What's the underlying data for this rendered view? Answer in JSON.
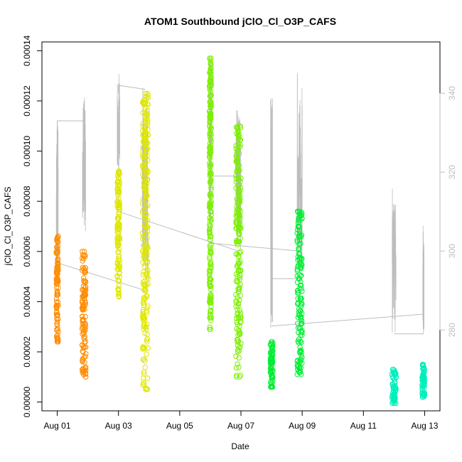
{
  "chart_data": {
    "type": "scatter",
    "title": "ATOM1 Southbound jClO_Cl_O3P_CAFS",
    "xlabel": "Date",
    "ylabel": "jClO_Cl_O3P_CAFS",
    "x_ticks": [
      "Aug 01",
      "Aug 03",
      "Aug 05",
      "Aug 07",
      "Aug 09",
      "Aug 11",
      "Aug 13"
    ],
    "y_ticks": [
      "0.00000",
      "0.00002",
      "0.00004",
      "0.00006",
      "0.00008",
      "0.00010",
      "0.00012",
      "0.00014"
    ],
    "y2_ticks": [
      "280",
      "300",
      "320",
      "340"
    ],
    "xlim": [
      "2016-07-31T12:00",
      "2016-08-13T12:00"
    ],
    "ylim": [
      -3.5e-06,
      0.0001435
    ],
    "y2lim": [
      259.5,
      353
    ],
    "grid": false,
    "series": [
      {
        "color": "#ff8c00",
        "clusters": [
          {
            "date": "2016-08-01T00:00",
            "width_h": 1.5,
            "ymin": 2.4e-05,
            "ymax": 6.6e-05
          },
          {
            "date": "2016-08-01T21:00",
            "width_h": 3.0,
            "ymin": 1e-05,
            "ymax": 6e-05
          }
        ]
      },
      {
        "color": "#dfe600",
        "clusters": [
          {
            "date": "2016-08-03T00:00",
            "width_h": 2.0,
            "ymin": 4.2e-05,
            "ymax": 9.2e-05
          },
          {
            "date": "2016-08-03T21:00",
            "width_h": 4.5,
            "ymin": 5e-06,
            "ymax": 0.000123
          }
        ]
      },
      {
        "color": "#7cef00",
        "clusters": [
          {
            "date": "2016-08-06T00:00",
            "width_h": 1.5,
            "ymin": 2.9e-05,
            "ymax": 0.000137
          },
          {
            "date": "2016-08-06T22:00",
            "width_h": 4.0,
            "ymin": 1e-05,
            "ymax": 0.00011
          }
        ]
      },
      {
        "color": "#00ee33",
        "clusters": [
          {
            "date": "2016-08-08T00:00",
            "width_h": 2.0,
            "ymin": 6e-06,
            "ymax": 2.4e-05
          },
          {
            "date": "2016-08-08T22:00",
            "width_h": 4.0,
            "ymin": 1.1e-05,
            "ymax": 7.6e-05
          }
        ]
      },
      {
        "color": "#00eebb",
        "clusters": [
          {
            "date": "2016-08-12T00:00",
            "width_h": 3.5,
            "ymin": -5e-07,
            "ymax": 1.3e-05
          },
          {
            "date": "2016-08-12T23:00",
            "width_h": 2.0,
            "ymin": 2e-06,
            "ymax": 1.5e-05
          }
        ]
      }
    ],
    "secondary_line": {
      "color": "#bdbdbd",
      "segments": [
        {
          "x": [
            "2016-08-01T00:00",
            "2016-08-01T00:00",
            "2016-08-01T00:00",
            "2016-08-01T21:00",
            "2016-08-01T21:00"
          ],
          "y2": [
            296,
            333,
            333,
            333,
            338
          ]
        },
        {
          "x": [
            "2016-08-01T00:00",
            "2016-08-03T21:00"
          ],
          "y2": [
            297,
            290
          ]
        },
        {
          "x": [
            "2016-08-03T00:00",
            "2016-08-03T00:00",
            "2016-08-03T21:00"
          ],
          "y2": [
            340,
            342,
            341
          ]
        },
        {
          "x": [
            "2016-08-03T00:00",
            "2016-08-06T22:00"
          ],
          "y2": [
            310,
            300
          ]
        },
        {
          "x": [
            "2016-08-06T00:00",
            "2016-08-06T22:00"
          ],
          "y2": [
            319,
            319
          ]
        },
        {
          "x": [
            "2016-08-06T00:00",
            "2016-08-08T22:00"
          ],
          "y2": [
            302,
            300
          ]
        },
        {
          "x": [
            "2016-08-08T00:00",
            "2016-08-08T00:00",
            "2016-08-08T22:00"
          ],
          "y2": [
            293,
            293,
            293
          ]
        },
        {
          "x": [
            "2016-08-08T00:00",
            "2016-08-12T23:00"
          ],
          "y2": [
            281,
            284
          ]
        },
        {
          "x": [
            "2016-08-12T00:00",
            "2016-08-12T23:00"
          ],
          "y2": [
            279,
            279
          ]
        }
      ],
      "spikes": [
        {
          "date": "2016-08-01T00:00",
          "width_h": 1.5,
          "min": 290,
          "max": 334
        },
        {
          "date": "2016-08-01T21:00",
          "width_h": 2.5,
          "min": 305,
          "max": 339
        },
        {
          "date": "2016-08-03T00:00",
          "width_h": 2.0,
          "min": 318,
          "max": 345
        },
        {
          "date": "2016-08-03T21:00",
          "width_h": 4.5,
          "min": 292,
          "max": 342
        },
        {
          "date": "2016-08-06T00:00",
          "width_h": 1.5,
          "min": 305,
          "max": 349
        },
        {
          "date": "2016-08-06T22:00",
          "width_h": 4.0,
          "min": 300,
          "max": 337
        },
        {
          "date": "2016-08-08T00:00",
          "width_h": 1.5,
          "min": 280,
          "max": 341
        },
        {
          "date": "2016-08-08T22:00",
          "width_h": 4.0,
          "min": 295,
          "max": 347
        },
        {
          "date": "2016-08-12T00:00",
          "width_h": 3.0,
          "min": 279,
          "max": 316
        },
        {
          "date": "2016-08-12T23:00",
          "width_h": 1.0,
          "min": 278,
          "max": 308
        }
      ]
    }
  }
}
